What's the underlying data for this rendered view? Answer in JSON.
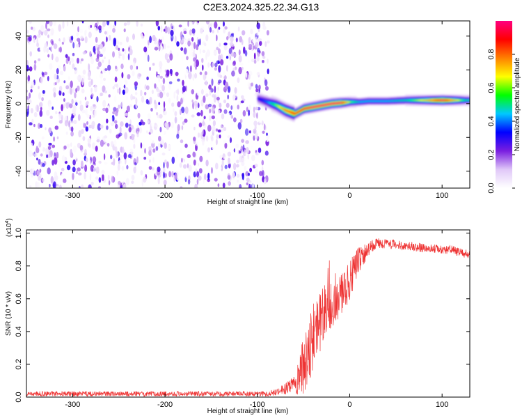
{
  "title": "C2E3.2024.325.22.34.G13",
  "chart_data": [
    {
      "type": "heatmap",
      "name": "spectrogram",
      "xlabel": "Height of straight line (km)",
      "ylabel": "Frequency (Hz)",
      "xlim": [
        -350,
        130
      ],
      "ylim": [
        -50,
        49
      ],
      "xticks": [
        -300,
        -200,
        -100,
        0,
        100
      ],
      "yticks": [
        -40,
        -20,
        0,
        20,
        40
      ],
      "colorbar": {
        "label": "Normalized spectral amplitude",
        "range": [
          0,
          1
        ],
        "ticks": [
          "0.0",
          "0.2",
          "0.4",
          "0.6",
          "0.8"
        ],
        "tick_values": [
          0,
          0.2,
          0.4,
          0.6,
          0.8
        ],
        "colors": [
          "#ffffff",
          "#e0c8f8",
          "#7a1ee0",
          "#0000ff",
          "#00c8ff",
          "#00ff00",
          "#ffff00",
          "#ff8000",
          "#ff0000",
          "#ff0080"
        ]
      },
      "noise_region": {
        "x_range": [
          -350,
          -88
        ],
        "amplitude_range": [
          0,
          0.3
        ]
      },
      "signal_ridge": {
        "x": [
          -100,
          -90,
          -80,
          -70,
          -60,
          -50,
          -40,
          -30,
          -20,
          -10,
          0,
          10,
          20,
          40,
          60,
          80,
          100,
          125
        ],
        "frequency": [
          3,
          1,
          -1,
          -4,
          -6,
          -3,
          -2,
          -1,
          0,
          0.5,
          1,
          1,
          1.5,
          1.5,
          2,
          2,
          2,
          2
        ],
        "peak_amplitude": [
          0.3,
          0.4,
          0.6,
          0.8,
          0.9,
          0.95,
          1.0,
          1.0,
          1.0,
          1.0,
          0.6,
          0.45,
          0.45,
          0.45,
          0.5,
          0.7,
          1.0,
          0.5
        ]
      }
    },
    {
      "type": "line",
      "name": "snr",
      "xlabel": "Height of straight line (km)",
      "ylabel": "SNR (10 * v/v)",
      "scale_label": "(x10",
      "scale_exponent": "4",
      "xlim": [
        -350,
        130
      ],
      "ylim": [
        0,
        1.02
      ],
      "xticks": [
        -300,
        -200,
        -100,
        0,
        100
      ],
      "yticks": [
        "0.0",
        "0.2",
        "0.4",
        "0.6",
        "0.8",
        "1.0"
      ],
      "ytick_values": [
        0,
        0.2,
        0.4,
        0.6,
        0.8,
        1.0
      ],
      "color": "#ee3333",
      "envelope": {
        "x": [
          -350,
          -300,
          -200,
          -100,
          -90,
          -80,
          -70,
          -60,
          -55,
          -50,
          -45,
          -40,
          -35,
          -30,
          -20,
          -10,
          0,
          5,
          10,
          20,
          30,
          50,
          80,
          100,
          110,
          120,
          130
        ],
        "y": [
          0.02,
          0.02,
          0.02,
          0.02,
          0.02,
          0.03,
          0.05,
          0.08,
          0.12,
          0.2,
          0.3,
          0.35,
          0.42,
          0.48,
          0.56,
          0.62,
          0.7,
          0.78,
          0.84,
          0.9,
          0.94,
          0.93,
          0.91,
          0.9,
          0.9,
          0.88,
          0.87
        ]
      },
      "spread": {
        "x": [
          -350,
          -100,
          -80,
          -60,
          -55,
          -50,
          -45,
          -40,
          -35,
          -30,
          -20,
          -10,
          0,
          10,
          20,
          30,
          130
        ],
        "y": [
          0.015,
          0.015,
          0.02,
          0.05,
          0.12,
          0.18,
          0.22,
          0.22,
          0.2,
          0.18,
          0.14,
          0.14,
          0.12,
          0.08,
          0.05,
          0.03,
          0.025
        ]
      }
    }
  ]
}
